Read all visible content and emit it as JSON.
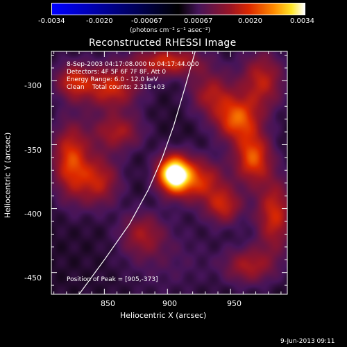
{
  "colorbar": {
    "ticks": [
      "-0.0034",
      "-0.0020",
      "-0.00067",
      "0.00067",
      "0.0020",
      "0.0034"
    ],
    "units": "(photons cm⁻² s⁻¹ asec⁻²)"
  },
  "chart_data": {
    "type": "heatmap",
    "title": "Reconstructed RHESSI Image",
    "xlabel": "Heliocentric X (arcsec)",
    "ylabel": "Heliocentric Y (arcsec)",
    "x_ticks": [
      "850",
      "900",
      "950"
    ],
    "y_ticks": [
      "-300",
      "-350",
      "-400",
      "-450"
    ],
    "xlim": [
      808,
      995
    ],
    "ylim": [
      -467,
      -277
    ],
    "zlim": [
      -0.0034,
      0.0034
    ],
    "peak": [
      905,
      -373
    ],
    "colormap": "RHESSI hot-diverging (blue → black → purple → red → yellow → white)",
    "blobs": [
      {
        "x": 905,
        "y": -373,
        "v": 1.0,
        "sx": 9,
        "sy": 10
      },
      {
        "x": 925,
        "y": -378,
        "v": 0.45,
        "sx": 14,
        "sy": 12
      },
      {
        "x": 823,
        "y": -362,
        "v": 0.5,
        "sx": 10,
        "sy": 20
      },
      {
        "x": 845,
        "y": -378,
        "v": 0.4,
        "sx": 12,
        "sy": 14
      },
      {
        "x": 860,
        "y": -340,
        "v": 0.35,
        "sx": 14,
        "sy": 10
      },
      {
        "x": 855,
        "y": -305,
        "v": 0.45,
        "sx": 16,
        "sy": 12
      },
      {
        "x": 900,
        "y": -285,
        "v": 0.45,
        "sx": 20,
        "sy": 8
      },
      {
        "x": 935,
        "y": -310,
        "v": 0.35,
        "sx": 12,
        "sy": 12
      },
      {
        "x": 955,
        "y": -330,
        "v": 0.55,
        "sx": 12,
        "sy": 12
      },
      {
        "x": 975,
        "y": -300,
        "v": 0.4,
        "sx": 12,
        "sy": 16
      },
      {
        "x": 968,
        "y": -360,
        "v": 0.55,
        "sx": 10,
        "sy": 14
      },
      {
        "x": 945,
        "y": -398,
        "v": 0.4,
        "sx": 10,
        "sy": 10
      },
      {
        "x": 985,
        "y": -405,
        "v": 0.45,
        "sx": 10,
        "sy": 20
      },
      {
        "x": 965,
        "y": -445,
        "v": 0.35,
        "sx": 14,
        "sy": 10
      },
      {
        "x": 880,
        "y": -420,
        "v": 0.3,
        "sx": 12,
        "sy": 12
      },
      {
        "x": 825,
        "y": -300,
        "v": 0.4,
        "sx": 10,
        "sy": 10
      },
      {
        "x": 900,
        "y": -440,
        "v": 0.1,
        "sx": 25,
        "sy": 20
      }
    ],
    "limb_curve": [
      [
        830,
        -467
      ],
      [
        850,
        -440
      ],
      [
        870,
        -412
      ],
      [
        885,
        -385
      ],
      [
        896,
        -360
      ],
      [
        905,
        -335
      ],
      [
        914,
        -305
      ],
      [
        922,
        -277
      ]
    ]
  },
  "annotations": {
    "time_range": "8-Sep-2003 04:17:08.000 to 04:17:44.000",
    "detectors": "Detectors: 4F 5F 6F 7F 8F, Att 0",
    "energy": "Energy Range: 6.0 - 12.0 keV",
    "clean": "Clean    Total counts: 2.31E+03",
    "peak_text": "Position of Peak = [905,-373]"
  },
  "footer": {
    "timestamp": "9-Jun-2013 09:11"
  }
}
